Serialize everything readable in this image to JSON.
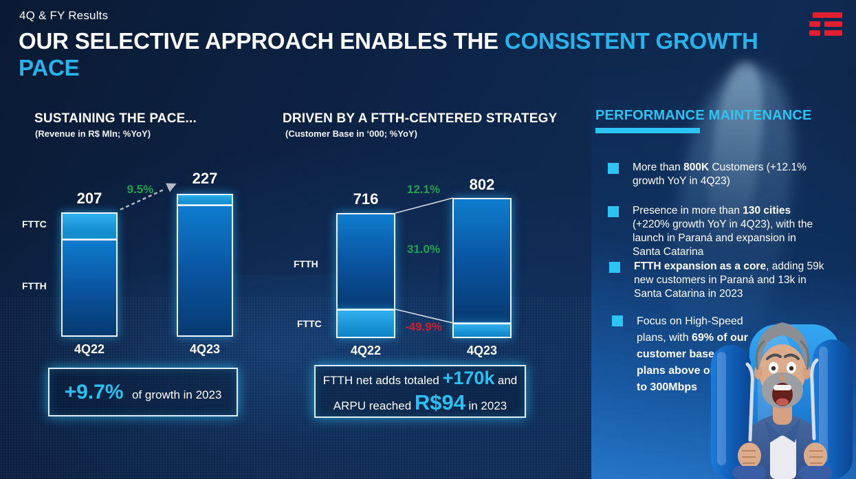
{
  "slide": {
    "eyebrow": "4Q & FY Results",
    "title_white": "OUR SELECTIVE APPROACH ENABLES THE ",
    "title_accent_line1": "CONSISTENT GROWTH",
    "title_accent_line2": "PACE"
  },
  "colors": {
    "accent_cyan": "#2bc0f2",
    "title_cyan": "#29b3ea",
    "green": "#1fa24d",
    "red": "#cf1f2e",
    "logo_red": "#e11f30",
    "background_navy": "#0d2448"
  },
  "chart_data": [
    {
      "type": "bar",
      "stacked": true,
      "title": "SUSTAINING THE PACE...",
      "subtitle": "(Revenue in R$ Mln; %YoY)",
      "categories": [
        "4Q22",
        "4Q23"
      ],
      "totals": [
        207,
        227
      ],
      "segments": [
        "FTTC",
        "FTTH"
      ],
      "growth_yoy": "9.5%",
      "legend_position": "left-of-bars",
      "callout": {
        "highlight": "+9.7%",
        "text": "of growth in 2023"
      }
    },
    {
      "type": "bar",
      "stacked": true,
      "title": "DRIVEN BY A FTTH-CENTERED STRATEGY",
      "subtitle": "(Customer Base in ‘000; %YoY)",
      "categories": [
        "4Q22",
        "4Q23"
      ],
      "totals": [
        716,
        802
      ],
      "segments": [
        "FTTH",
        "FTTC"
      ],
      "growth_total_yoy": "12.1%",
      "growth_ftth_yoy": "31.0%",
      "growth_fttc_yoy": "-49.9%",
      "legend_position": "left-of-bars",
      "callout": {
        "line1_pre": "FTTH net adds totaled ",
        "line1_big": "+170k",
        "line1_post": " and",
        "line2_pre": "ARPU reached ",
        "line2_big": "R$94",
        "line2_post": " in 2023"
      }
    }
  ],
  "performance": {
    "heading": "PERFORMANCE MAINTENANCE",
    "bullets": [
      {
        "segments": [
          {
            "t": "More than ",
            "b": false
          },
          {
            "t": "800K",
            "b": true
          },
          {
            "t": " Customers (+12.1% growth YoY in 4Q23)",
            "b": false
          }
        ]
      },
      {
        "segments": [
          {
            "t": "Presence in more than ",
            "b": false
          },
          {
            "t": "130 cities",
            "b": true
          },
          {
            "t": " (+220% growth YoY in 4Q23), with the launch in Paraná and expansion in Santa Catarina",
            "b": false
          }
        ]
      },
      {
        "segments": [
          {
            "t": "FTTH expansion as a core",
            "b": true
          },
          {
            "t": ", adding 59k new customers in Paraná and 13k in Santa Catarina in 2023",
            "b": false
          }
        ]
      },
      {
        "segments": [
          {
            "t": "Focus on High-Speed plans, with ",
            "b": false
          },
          {
            "t": "69% of our customer base in plans above or equal to 300Mbps",
            "b": true
          }
        ]
      }
    ]
  }
}
